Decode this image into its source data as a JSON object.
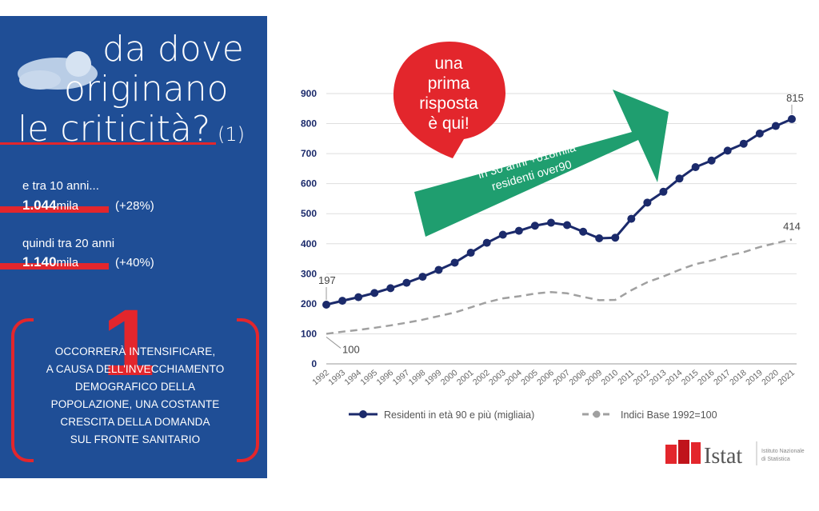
{
  "panel": {
    "headline": [
      "da dove",
      "originano",
      "le criticità?"
    ],
    "headline_note": "(1)",
    "stat1_label": "e tra 10 anni...",
    "stat1_value": "1.044",
    "stat1_unit": "mila",
    "stat1_pct": "(+28%)",
    "stat2_label": "quindi tra 20 anni",
    "stat2_value": "1.140",
    "stat2_unit": "mila",
    "stat2_pct": "(+40%)",
    "number": "1",
    "body": [
      "OCCORRERÀ INTENSIFICARE,",
      "A CAUSA DELL'INVECCHIAMENTO",
      "DEMOGRAFICO DELLA",
      "POPOLAZIONE, UNA COSTANTE",
      "CRESCITA DELLA DOMANDA",
      "SUL FRONTE SANITARIO"
    ]
  },
  "bubble": {
    "lines": [
      "una",
      "prima",
      "risposta",
      "è qui!"
    ],
    "color": "#e3262c"
  },
  "arrow": {
    "lines": [
      "in 30 anni +618mila",
      "residenti over90"
    ],
    "color": "#1f9e6f"
  },
  "logo": {
    "name": "Istat",
    "sub": [
      "Istituto Nazionale",
      "di Statistica"
    ]
  },
  "colors": {
    "panel": "#1f4e96",
    "accent": "#e3262c",
    "series1": "#1b2a6b",
    "series2": "#a0a0a0"
  },
  "chart_data": {
    "type": "line",
    "x": [
      "1992",
      "1993",
      "1994",
      "1995",
      "1996",
      "1997",
      "1998",
      "1999",
      "2000",
      "2001",
      "2002",
      "2003",
      "2004",
      "2005",
      "2006",
      "2007",
      "2008",
      "2009",
      "2010",
      "2011",
      "2012",
      "2013",
      "2014",
      "2015",
      "2016",
      "2017",
      "2018",
      "2019",
      "2020",
      "2021"
    ],
    "ylim": [
      0,
      900
    ],
    "yticks": [
      0,
      100,
      200,
      300,
      400,
      500,
      600,
      700,
      800,
      900
    ],
    "grid": true,
    "legend_position": "bottom",
    "series": [
      {
        "name": "Residenti in età 90 e più (migliaia)",
        "style": "solid-markers",
        "values": [
          197,
          210,
          222,
          236,
          252,
          270,
          290,
          313,
          337,
          370,
          403,
          430,
          443,
          460,
          470,
          462,
          440,
          418,
          420,
          483,
          537,
          573,
          617,
          655,
          677,
          710,
          733,
          767,
          792,
          815
        ],
        "first_label": "197",
        "last_label": "815"
      },
      {
        "name": "Indici Base 1992=100",
        "style": "dashed",
        "values": [
          100,
          107,
          113,
          120,
          128,
          137,
          147,
          159,
          171,
          188,
          205,
          218,
          225,
          234,
          239,
          235,
          223,
          212,
          213,
          245,
          272,
          291,
          313,
          332,
          344,
          360,
          372,
          389,
          402,
          414
        ],
        "first_label": "100",
        "last_label": "414"
      }
    ]
  }
}
